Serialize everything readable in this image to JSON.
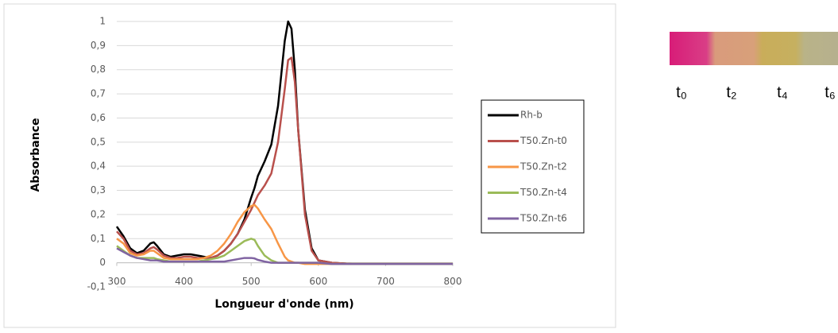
{
  "chart_data": {
    "type": "line",
    "x_label": "Longueur d'onde (nm)",
    "y_label": "Absorbance",
    "x": [
      300,
      310,
      320,
      330,
      340,
      350,
      355,
      360,
      370,
      380,
      390,
      400,
      410,
      420,
      430,
      440,
      450,
      460,
      470,
      480,
      490,
      500,
      505,
      510,
      520,
      530,
      540,
      550,
      555,
      560,
      565,
      570,
      580,
      590,
      600,
      620,
      650,
      700,
      750,
      800
    ],
    "series": [
      {
        "name": "Rh-b",
        "color": "#000000",
        "values": [
          0.15,
          0.11,
          0.06,
          0.04,
          0.05,
          0.08,
          0.085,
          0.07,
          0.035,
          0.025,
          0.03,
          0.035,
          0.035,
          0.03,
          0.025,
          0.02,
          0.03,
          0.05,
          0.08,
          0.12,
          0.18,
          0.27,
          0.31,
          0.36,
          0.42,
          0.49,
          0.65,
          0.92,
          1.0,
          0.97,
          0.8,
          0.55,
          0.22,
          0.06,
          0.01,
          0,
          -0.005,
          -0.005,
          -0.005,
          -0.005
        ]
      },
      {
        "name": "T50.Zn-t0",
        "color": "#b9504c",
        "values": [
          0.13,
          0.1,
          0.05,
          0.035,
          0.04,
          0.06,
          0.065,
          0.055,
          0.03,
          0.02,
          0.02,
          0.025,
          0.025,
          0.02,
          0.02,
          0.02,
          0.03,
          0.05,
          0.08,
          0.12,
          0.17,
          0.22,
          0.25,
          0.28,
          0.32,
          0.37,
          0.5,
          0.72,
          0.84,
          0.85,
          0.75,
          0.55,
          0.2,
          0.05,
          0.01,
          0,
          -0.005,
          -0.005,
          -0.005,
          -0.005
        ]
      },
      {
        "name": "T50.Zn-t2",
        "color": "#f79646",
        "values": [
          0.1,
          0.08,
          0.04,
          0.03,
          0.035,
          0.05,
          0.05,
          0.04,
          0.02,
          0.015,
          0.015,
          0.015,
          0.015,
          0.015,
          0.02,
          0.03,
          0.05,
          0.08,
          0.12,
          0.17,
          0.21,
          0.235,
          0.24,
          0.225,
          0.18,
          0.14,
          0.08,
          0.025,
          0.01,
          0.005,
          0,
          0,
          -0.005,
          -0.005,
          -0.005,
          -0.005,
          -0.005,
          -0.005,
          -0.005,
          -0.005
        ]
      },
      {
        "name": "T50.Zn-t4",
        "color": "#9bbb59",
        "values": [
          0.07,
          0.05,
          0.03,
          0.02,
          0.02,
          0.02,
          0.02,
          0.015,
          0.01,
          0.005,
          0.005,
          0.005,
          0.005,
          0.005,
          0.01,
          0.015,
          0.02,
          0.03,
          0.05,
          0.07,
          0.09,
          0.1,
          0.095,
          0.07,
          0.03,
          0.01,
          0,
          0,
          0,
          0,
          0,
          0,
          0,
          0,
          0,
          -0.005,
          -0.005,
          -0.005,
          -0.005,
          -0.005
        ]
      },
      {
        "name": "T50.Zn-t6",
        "color": "#8064a2",
        "values": [
          0.06,
          0.045,
          0.03,
          0.02,
          0.015,
          0.01,
          0.01,
          0.01,
          0.005,
          0.005,
          0.005,
          0.005,
          0.005,
          0.005,
          0.005,
          0.005,
          0.005,
          0.005,
          0.01,
          0.015,
          0.02,
          0.02,
          0.018,
          0.012,
          0.005,
          0,
          0,
          0,
          0,
          0,
          0,
          0,
          0,
          0,
          0,
          -0.005,
          -0.005,
          -0.005,
          -0.005,
          -0.005
        ]
      }
    ],
    "xlim": [
      300,
      800
    ],
    "xticks": [
      300,
      400,
      500,
      600,
      700,
      800
    ],
    "ylim": [
      -0.1,
      1
    ],
    "yticks": [
      {
        "value": -0.1,
        "label": "-0,1"
      },
      0,
      {
        "value": 0.1,
        "label": "0,1"
      },
      {
        "value": 0.2,
        "label": "0,2"
      },
      {
        "value": 0.3,
        "label": "0,3"
      },
      {
        "value": 0.4,
        "label": "0,4"
      },
      {
        "value": 0.5,
        "label": "0,5"
      },
      {
        "value": 0.6,
        "label": "0,6"
      },
      {
        "value": 0.7,
        "label": "0,7"
      },
      {
        "value": 0.8,
        "label": "0,8"
      },
      {
        "value": 0.9,
        "label": "0,9"
      },
      1
    ],
    "grid": true,
    "legend": "right"
  },
  "swatches": {
    "labels": [
      "t₀",
      "t₂",
      "t₄",
      "t₆"
    ]
  }
}
